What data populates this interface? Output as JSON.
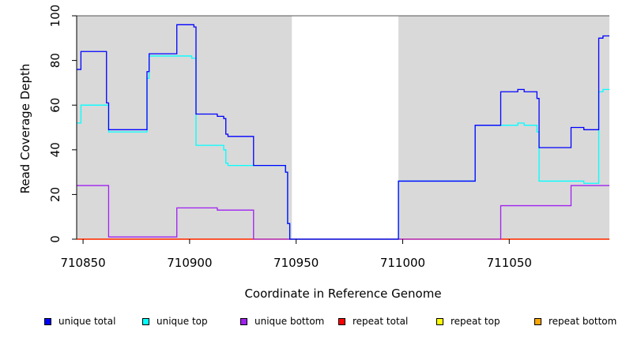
{
  "chart_data": {
    "type": "line",
    "title": "",
    "xlabel": "Coordinate in Reference Genome",
    "ylabel": "Read Coverage Depth",
    "xlim": [
      710847,
      711097
    ],
    "ylim": [
      0,
      100
    ],
    "x_ticks": [
      710850,
      710900,
      710950,
      711000,
      711050
    ],
    "y_ticks": [
      0,
      20,
      40,
      60,
      80,
      100
    ],
    "shaded_regions": [
      [
        710847,
        710948
      ],
      [
        710998,
        711097
      ]
    ],
    "legend_position": "bottom",
    "series": [
      {
        "name": "unique total",
        "color": "#0000ff",
        "steps": [
          [
            710847,
            76
          ],
          [
            710849,
            84
          ],
          [
            710861,
            61
          ],
          [
            710862,
            49
          ],
          [
            710880,
            75
          ],
          [
            710881,
            83
          ],
          [
            710894,
            96
          ],
          [
            710902,
            95
          ],
          [
            710903,
            56
          ],
          [
            710913,
            55
          ],
          [
            710916,
            54
          ],
          [
            710917,
            47
          ],
          [
            710918,
            46
          ],
          [
            710930,
            33
          ],
          [
            710945,
            30
          ],
          [
            710946,
            7
          ],
          [
            710947,
            0
          ],
          [
            710998,
            26
          ],
          [
            711034,
            51
          ],
          [
            711046,
            66
          ],
          [
            711054,
            67
          ],
          [
            711057,
            66
          ],
          [
            711063,
            63
          ],
          [
            711064,
            41
          ],
          [
            711079,
            50
          ],
          [
            711085,
            49
          ],
          [
            711092,
            90
          ],
          [
            711094,
            91
          ],
          [
            711097,
            91
          ]
        ]
      },
      {
        "name": "unique top",
        "color": "#00ffff",
        "steps": [
          [
            710847,
            52
          ],
          [
            710849,
            60
          ],
          [
            710861,
            60
          ],
          [
            710862,
            48
          ],
          [
            710880,
            72
          ],
          [
            710881,
            82
          ],
          [
            710901,
            81
          ],
          [
            710903,
            42
          ],
          [
            710916,
            40
          ],
          [
            710917,
            34
          ],
          [
            710918,
            33
          ],
          [
            710930,
            33
          ],
          [
            710945,
            30
          ],
          [
            710946,
            7
          ],
          [
            710947,
            0
          ],
          [
            710998,
            26
          ],
          [
            711034,
            51
          ],
          [
            711054,
            52
          ],
          [
            711057,
            51
          ],
          [
            711063,
            48
          ],
          [
            711064,
            26
          ],
          [
            711085,
            25
          ],
          [
            711092,
            66
          ],
          [
            711094,
            67
          ],
          [
            711097,
            67
          ]
        ]
      },
      {
        "name": "unique bottom",
        "color": "#a020f0",
        "steps": [
          [
            710847,
            24
          ],
          [
            710862,
            1
          ],
          [
            710894,
            14
          ],
          [
            710913,
            13
          ],
          [
            710930,
            0
          ],
          [
            711046,
            15
          ],
          [
            711079,
            24
          ],
          [
            711097,
            24
          ]
        ]
      },
      {
        "name": "repeat total",
        "color": "#ff0000",
        "steps": [
          [
            710847,
            0
          ],
          [
            711097,
            0
          ]
        ]
      },
      {
        "name": "repeat top",
        "color": "#ffff00",
        "steps": [
          [
            710847,
            0
          ],
          [
            711097,
            0
          ]
        ]
      },
      {
        "name": "repeat bottom",
        "color": "#ffa500",
        "steps": [
          [
            710847,
            0
          ],
          [
            711097,
            0
          ]
        ]
      }
    ]
  }
}
